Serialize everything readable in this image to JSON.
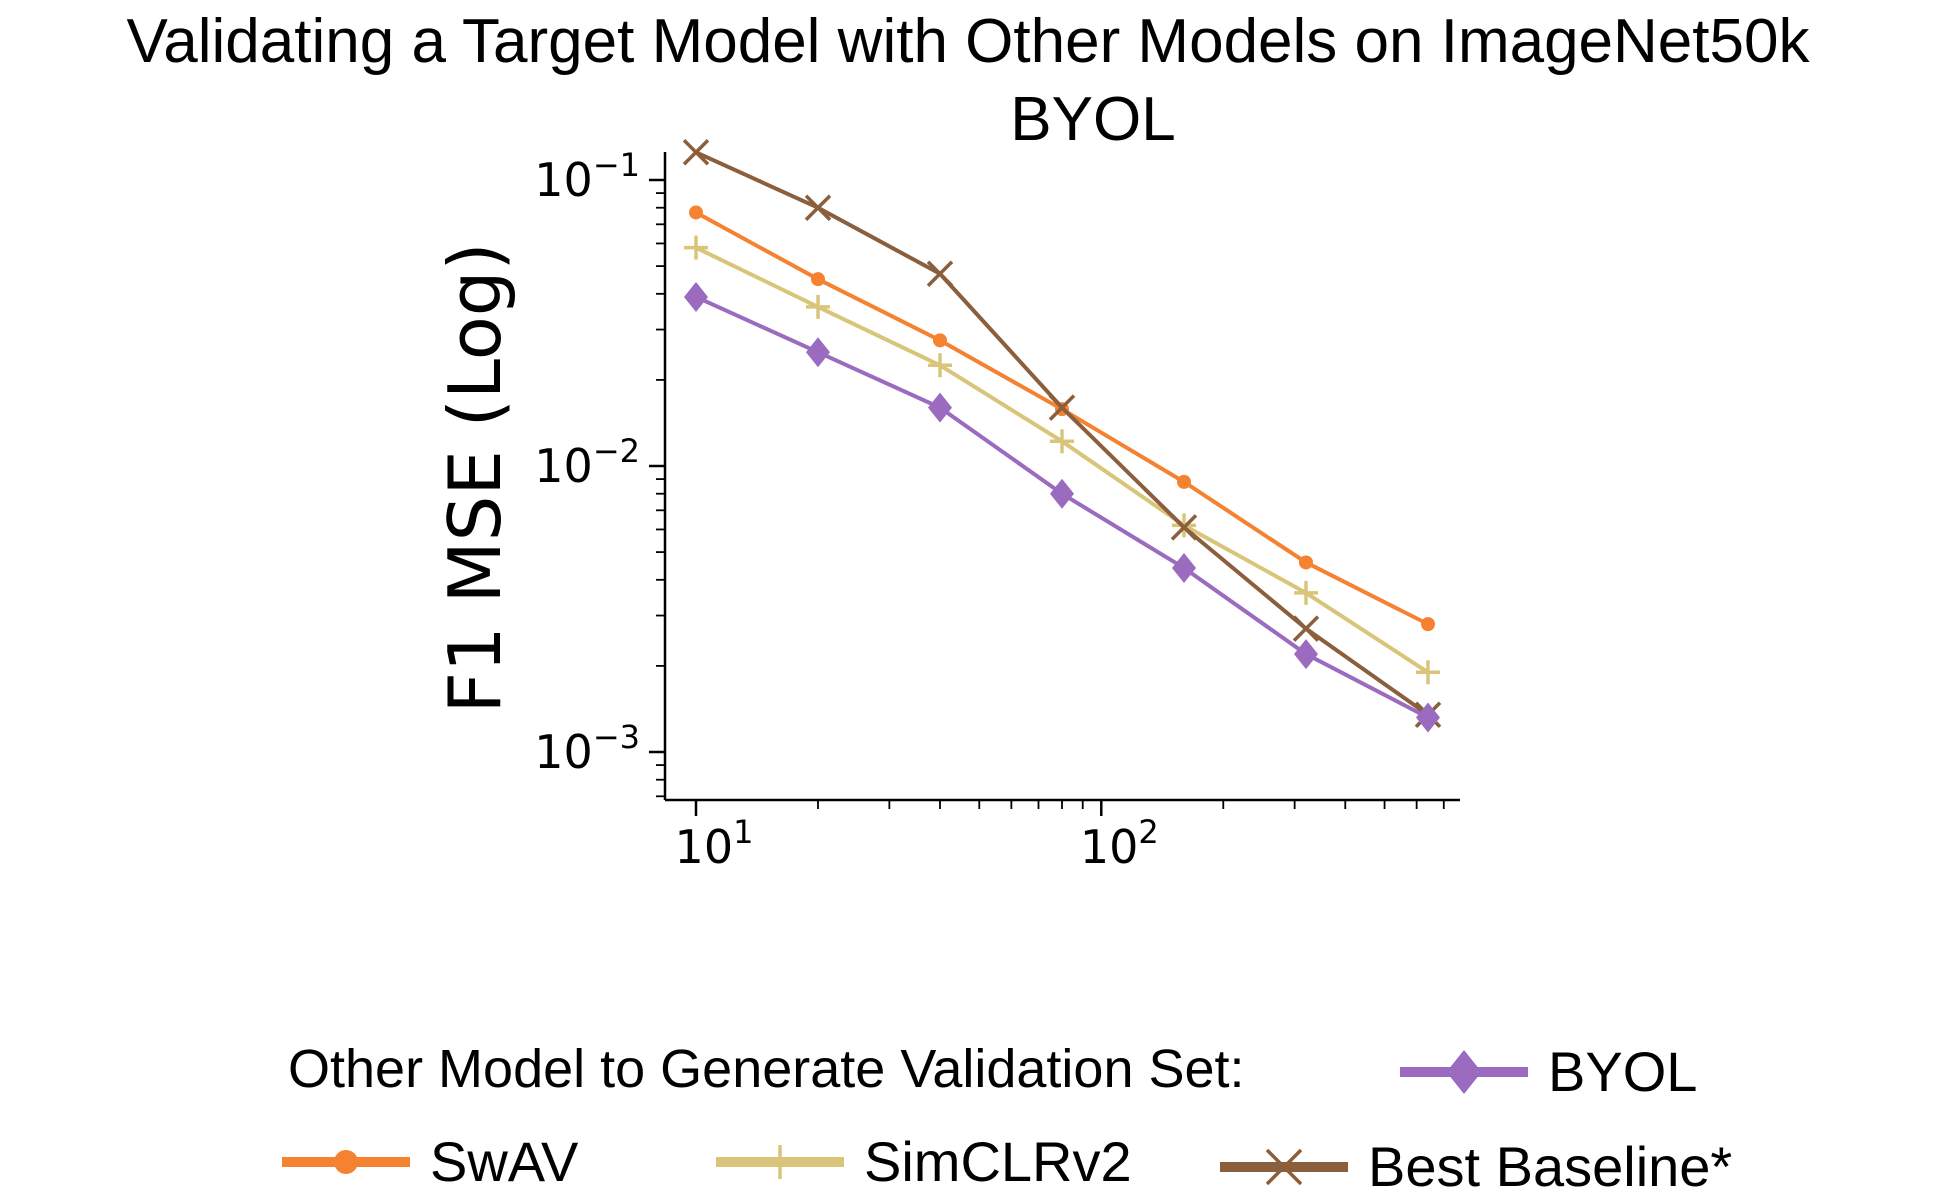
{
  "chart_data": {
    "type": "line",
    "title": "Validating a Target Model with Other Models on ImageNet50k",
    "subtitle": "BYOL",
    "xlabel": "",
    "ylabel": "F1 MSE (Log)",
    "xscale": "log",
    "yscale": "log",
    "xlim": [
      8,
      800
    ],
    "ylim": [
      0.0007,
      0.13
    ],
    "x_ticks": [
      "10^1",
      "10^2"
    ],
    "y_ticks": [
      "10^-1",
      "10^-2",
      "10^-3"
    ],
    "grid": false,
    "x": [
      10,
      20,
      40,
      80,
      160,
      320,
      640
    ],
    "series": [
      {
        "name": "SwAV",
        "color": "#f58231",
        "marker": "circle",
        "values": [
          0.077,
          0.045,
          0.0275,
          0.0158,
          0.0088,
          0.0046,
          0.0028
        ]
      },
      {
        "name": "SimCLRv2",
        "color": "#d9c57a",
        "marker": "plus",
        "values": [
          0.058,
          0.036,
          0.0225,
          0.0122,
          0.0062,
          0.0036,
          0.0019
        ]
      },
      {
        "name": "Best Baseline*",
        "color": "#8b5e3c",
        "marker": "x",
        "values": [
          0.125,
          0.08,
          0.047,
          0.016,
          0.0061,
          0.0027,
          0.00135
        ]
      },
      {
        "name": "BYOL",
        "color": "#9b6bbf",
        "marker": "diamond",
        "values": [
          0.039,
          0.025,
          0.016,
          0.008,
          0.0044,
          0.0022,
          0.00132
        ]
      }
    ],
    "legend": {
      "title": "Other Model to Generate Validation Set:",
      "placement": "bottom",
      "order": [
        "BYOL",
        "SwAV",
        "SimCLRv2",
        "Best Baseline*"
      ]
    }
  }
}
